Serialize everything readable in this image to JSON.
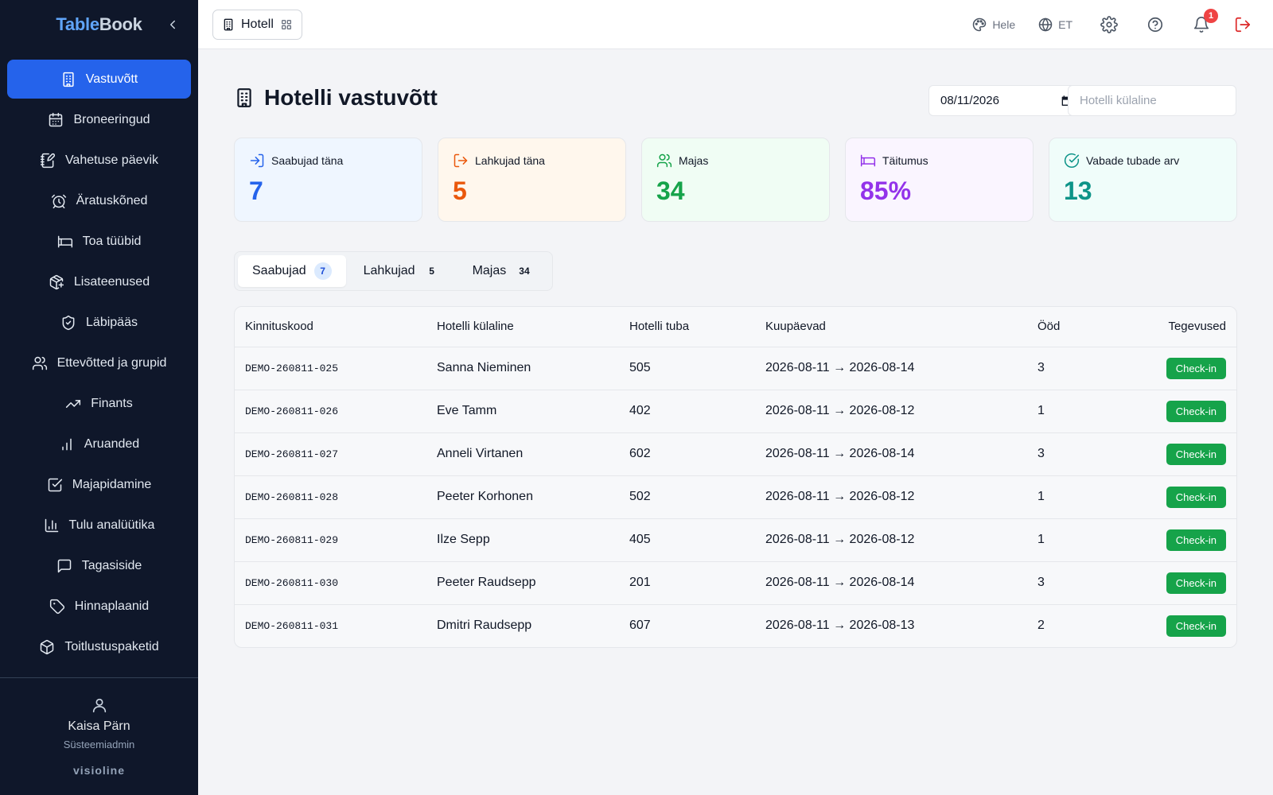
{
  "brand": {
    "part1": "Table",
    "part2": "Book"
  },
  "sidebar": {
    "items": [
      {
        "label": "Vastuvõtt",
        "icon": "building-icon"
      },
      {
        "label": "Broneeringud",
        "icon": "calendar-icon"
      },
      {
        "label": "Vahetuse päevik",
        "icon": "notebook-pen-icon"
      },
      {
        "label": "Äratuskõned",
        "icon": "alarm-clock-icon"
      },
      {
        "label": "Toa tüübid",
        "icon": "bed-icon"
      },
      {
        "label": "Lisateenused",
        "icon": "package-plus-icon"
      },
      {
        "label": "Läbipääs",
        "icon": "shield-check-icon"
      },
      {
        "label": "Ettevõtted ja grupid",
        "icon": "users-icon"
      },
      {
        "label": "Finants",
        "icon": "trending-up-icon"
      },
      {
        "label": "Aruanded",
        "icon": "bar-chart-icon"
      },
      {
        "label": "Majapidamine",
        "icon": "check-square-icon"
      },
      {
        "label": "Tulu analüütika",
        "icon": "chart-column-icon"
      },
      {
        "label": "Tagasiside",
        "icon": "message-square-icon"
      },
      {
        "label": "Hinnaplaanid",
        "icon": "tag-icon"
      },
      {
        "label": "Toitlustuspaketid",
        "icon": "box-icon"
      }
    ],
    "footer": {
      "name": "Kaisa Pärn",
      "role": "Süsteemiadmin",
      "logo": "visioline"
    }
  },
  "topbar": {
    "module": "Hotell",
    "theme": "Hele",
    "language": "ET",
    "notifications": "1"
  },
  "main": {
    "title": "Hotelli vastuvõtt",
    "date": "08/11/2026",
    "guest_placeholder": "Hotelli külaline",
    "stats": [
      {
        "label": "Saabujad täna",
        "value": "7",
        "color": "#2563eb",
        "bg": "#eff6ff",
        "icon": "log-in-icon"
      },
      {
        "label": "Lahkujad täna",
        "value": "5",
        "color": "#ea580c",
        "bg": "#fff7ed",
        "icon": "log-out-icon"
      },
      {
        "label": "Majas",
        "value": "34",
        "color": "#16a34a",
        "bg": "#f0fdf4",
        "icon": "users-icon"
      },
      {
        "label": "Täitumus",
        "value": "85%",
        "color": "#9333ea",
        "bg": "#faf5ff",
        "icon": "bed-icon"
      },
      {
        "label": "Vabade tubade arv",
        "value": "13",
        "color": "#0d9488",
        "bg": "#f0fdfa",
        "icon": "check-circle-icon"
      }
    ],
    "tabs": [
      {
        "label": "Saabujad",
        "count": "7"
      },
      {
        "label": "Lahkujad",
        "count": "5"
      },
      {
        "label": "Majas",
        "count": "34"
      }
    ],
    "table": {
      "headers": [
        "Kinnituskood",
        "Hotelli külaline",
        "Hotelli tuba",
        "Kuupäevad",
        "Ööd",
        "Tegevused"
      ],
      "action_label": "Check-in",
      "rows": [
        {
          "code": "DEMO-260811-025",
          "guest": "Sanna Nieminen",
          "room": "505",
          "dates": "2026-08-11 → 2026-08-14",
          "nights": "3"
        },
        {
          "code": "DEMO-260811-026",
          "guest": "Eve Tamm",
          "room": "402",
          "dates": "2026-08-11 → 2026-08-12",
          "nights": "1"
        },
        {
          "code": "DEMO-260811-027",
          "guest": "Anneli Virtanen",
          "room": "602",
          "dates": "2026-08-11 → 2026-08-14",
          "nights": "3"
        },
        {
          "code": "DEMO-260811-028",
          "guest": "Peeter Korhonen",
          "room": "502",
          "dates": "2026-08-11 → 2026-08-12",
          "nights": "1"
        },
        {
          "code": "DEMO-260811-029",
          "guest": "Ilze Sepp",
          "room": "405",
          "dates": "2026-08-11 → 2026-08-12",
          "nights": "1"
        },
        {
          "code": "DEMO-260811-030",
          "guest": "Peeter Raudsepp",
          "room": "201",
          "dates": "2026-08-11 → 2026-08-14",
          "nights": "3"
        },
        {
          "code": "DEMO-260811-031",
          "guest": "Dmitri Raudsepp",
          "room": "607",
          "dates": "2026-08-11 → 2026-08-13",
          "nights": "2"
        }
      ]
    }
  }
}
